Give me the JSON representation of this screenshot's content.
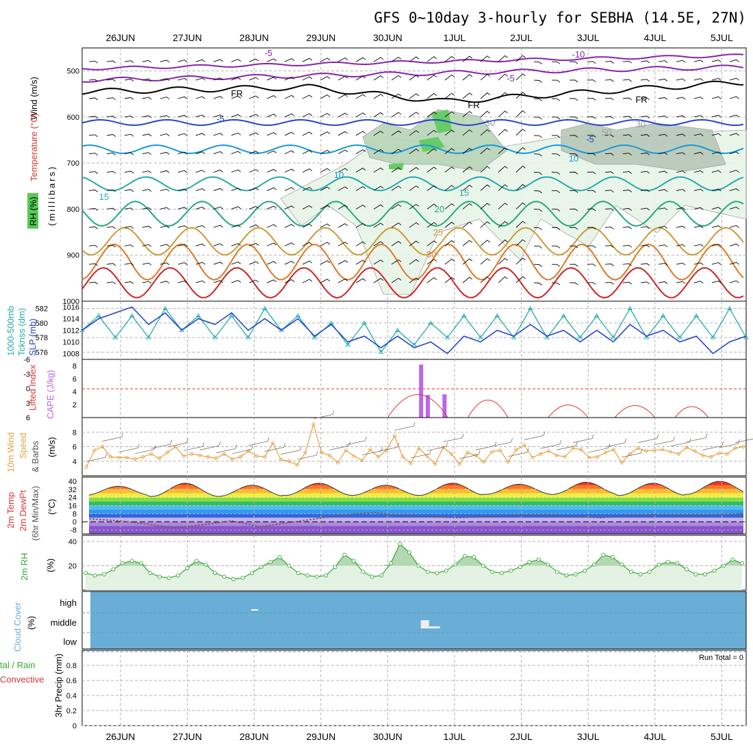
{
  "title": "GFS 0~10day 3-hourly for SEBHA (14.5E, 27N)",
  "dates": [
    "26JUN",
    "27JUN",
    "28JUN",
    "29JUN",
    "30JUN",
    "1JUL",
    "2JUL",
    "3JUL",
    "4JUL",
    "5JUL"
  ],
  "colors": {
    "rh": "#55cc55",
    "temperature": "#dd3333",
    "wind": "#000000",
    "lifted_index": "#dd3333",
    "cape": "#bb66ee",
    "wind10": "#e6a040",
    "slp": "#2244cc",
    "thickness": "#22aaaa",
    "cloud": "#6aaed6",
    "precip_total": "#33aa33",
    "precip_conv": "#dd3333"
  },
  "panels": {
    "upper": {
      "label_wind": "Wind (m/s)",
      "label_temp": "Temperature (°C)",
      "label_rh": "RH (%)",
      "label_pressure": "(millibars)",
      "yticks": [
        "500",
        "600",
        "700",
        "800",
        "900",
        "1000"
      ],
      "contour_labels": [
        "-10",
        "-5",
        "-5",
        "FR",
        "FR",
        "FR",
        "-5",
        "-5",
        "10",
        "10",
        "15",
        "15",
        "20",
        "25",
        "30",
        "30",
        "50",
        "30"
      ]
    },
    "thickness": {
      "label_a": "1000-500mb",
      "label_b": "Tcknss (dm)",
      "label_slp": "SLP (mb)",
      "yticks_left": [
        "582",
        "580",
        "578",
        "576"
      ],
      "yticks_right": [
        "1016",
        "1014",
        "1012",
        "1010",
        "1008"
      ]
    },
    "cape": {
      "label_li": "Lifted Index",
      "label_cape": "CAPE (J/kg)",
      "yticks_left": [
        "-6",
        "-3",
        "0",
        "3",
        "6"
      ],
      "yticks_right": [
        "8",
        "6",
        "4",
        "2"
      ]
    },
    "wind10": {
      "label_a": "10m Wind",
      "label_b": "Speed",
      "label_c": "& Barbs",
      "label_unit": "(m/s)",
      "yticks": [
        "8",
        "6",
        "4"
      ]
    },
    "temp2m": {
      "label_a": "2m Temp",
      "label_b": "2m DewPt",
      "label_c": "(6hr Min/Max)",
      "label_unit": "(°C)",
      "yticks": [
        "40",
        "32",
        "24",
        "16",
        "8",
        "0",
        "-8"
      ]
    },
    "rh2m": {
      "label_a": "2m RH",
      "label_unit": "(%)",
      "yticks": [
        "40",
        "20"
      ]
    },
    "cloud": {
      "label_a": "Cloud Cover",
      "label_unit": "(%)",
      "levels": [
        "high",
        "middle",
        "low"
      ]
    },
    "precip": {
      "label_a": "tal / Rain",
      "label_b": "Convective",
      "label_c": "3hr Precip (mm)",
      "run_total": "Run Total = 0",
      "yticks": [
        "0.8",
        "0.6",
        "0.4",
        "0.2",
        "0"
      ]
    }
  },
  "chart_data": [
    {
      "type": "line",
      "name": "upper-air cross section",
      "x": [
        "26JUN",
        "27JUN",
        "28JUN",
        "29JUN",
        "30JUN",
        "1JUL",
        "2JUL",
        "3JUL",
        "4JUL",
        "5JUL"
      ],
      "ylim": [
        1000,
        450
      ],
      "contours_C": [
        -10,
        -5,
        0,
        5,
        10,
        15,
        20,
        25,
        30,
        35,
        40
      ],
      "rh_contours_pct": [
        30,
        50
      ]
    },
    {
      "type": "line",
      "name": "thickness and slp",
      "thickness_dm": [
        579,
        581,
        578,
        581,
        578,
        582,
        579,
        581,
        578,
        581,
        578,
        582,
        579,
        581,
        578,
        580,
        577,
        580,
        576,
        579,
        577,
        580,
        578,
        581,
        578,
        581,
        578,
        582,
        578,
        581,
        578,
        581,
        578,
        582,
        578,
        581,
        578,
        581,
        578,
        582,
        578
      ],
      "slp_mb": [
        1012,
        1014,
        1015,
        1016,
        1013,
        1015,
        1012,
        1014,
        1013,
        1015,
        1012,
        1014,
        1012,
        1014,
        1011,
        1013,
        1010,
        1011,
        1009,
        1011,
        1009,
        1010,
        1008,
        1011,
        1010,
        1012,
        1011,
        1013,
        1011,
        1012,
        1010,
        1012,
        1010,
        1013,
        1011,
        1012,
        1010,
        1011,
        1008,
        1010,
        1011
      ],
      "ylim_left": [
        575,
        583
      ],
      "ylim_right": [
        1007,
        1017
      ]
    },
    {
      "type": "bar",
      "name": "cape and lifted index",
      "cape_bars": [
        {
          "x": 4.5,
          "value": 8.2
        },
        {
          "x": 4.6,
          "value": 3.5
        },
        {
          "x": 4.85,
          "value": 3.6
        }
      ],
      "lifted_index_arcs": [
        [
          4.0,
          4.9,
          4.2
        ],
        [
          5.2,
          5.8,
          3.2
        ],
        [
          6.4,
          7.0,
          2.3
        ],
        [
          7.4,
          8.0,
          2.2
        ],
        [
          8.3,
          8.8,
          2.0
        ]
      ],
      "ylim_cape": [
        0,
        9
      ],
      "ylim_li": [
        6,
        -6
      ]
    },
    {
      "type": "line",
      "name": "10m wind speed",
      "values": [
        3.2,
        5.5,
        6.0,
        4.6,
        4.5,
        4.5,
        4.3,
        4.6,
        5.0,
        4.4,
        5.2,
        6.0,
        4.7,
        5.0,
        4.8,
        4.6,
        4.4,
        5.0,
        4.3,
        4.6,
        5.4,
        4.7,
        4.6,
        6.5,
        4.2,
        4.0,
        3.5,
        5.2,
        9.1,
        5.2,
        4.8,
        3.8,
        5.5,
        4.7,
        4.1,
        5.6,
        4.6,
        5.5,
        7.5,
        4.6,
        3.7,
        5.8,
        4.7,
        3.6,
        5.9,
        5.0,
        3.6,
        5.2,
        4.8,
        3.9,
        5.3,
        5.5,
        3.9,
        5.6,
        6.2,
        4.5,
        5.0,
        5.4,
        4.8,
        4.6,
        5.8,
        5.6,
        4.5,
        4.6,
        5.2,
        5.6,
        3.8,
        5.0,
        5.8,
        5.4,
        5.5,
        5.6,
        5.3,
        5.0,
        5.9,
        5.4,
        4.8,
        4.6,
        5.1,
        5.0,
        5.8,
        6.0
      ],
      "ylim": [
        2,
        10
      ]
    },
    {
      "type": "area",
      "name": "2m temperature and dewpoint",
      "temp_max": [
        35,
        38,
        36,
        38,
        36,
        38,
        37,
        39,
        38,
        40
      ],
      "temp_min": [
        26,
        25,
        25,
        26,
        26,
        26,
        27,
        27,
        26,
        27
      ],
      "dewpoint": [
        3,
        1,
        -2,
        -6,
        -3,
        1,
        -5,
        -1,
        3,
        7,
        9,
        6,
        5,
        4,
        5,
        6,
        7,
        5,
        4,
        6,
        7,
        6,
        7,
        8
      ],
      "ylim": [
        -12,
        44
      ]
    },
    {
      "type": "area",
      "name": "2m relative humidity",
      "values": [
        14,
        12,
        13,
        17,
        22,
        24,
        22,
        14,
        11,
        10,
        12,
        18,
        24,
        21,
        14,
        11,
        9,
        10,
        14,
        19,
        23,
        27,
        20,
        14,
        12,
        11,
        12,
        19,
        29,
        24,
        15,
        11,
        12,
        22,
        38,
        31,
        20,
        15,
        14,
        16,
        21,
        28,
        27,
        20,
        15,
        14,
        16,
        19,
        23,
        25,
        21,
        15,
        12,
        13,
        16,
        21,
        29,
        27,
        21,
        15,
        13,
        15,
        21,
        23,
        22,
        17,
        13,
        13,
        16,
        20,
        25,
        22
      ],
      "ylim": [
        0,
        45
      ]
    },
    {
      "type": "table",
      "name": "cloud cover",
      "cloud_blocks": [
        {
          "x": 2.0,
          "level": "high",
          "width": 0.1
        },
        {
          "x": 4.7,
          "level": "middle",
          "width": 0.25
        }
      ]
    },
    {
      "type": "bar",
      "name": "3hr precipitation",
      "values": [],
      "ylim": [
        0,
        1.0
      ]
    }
  ]
}
